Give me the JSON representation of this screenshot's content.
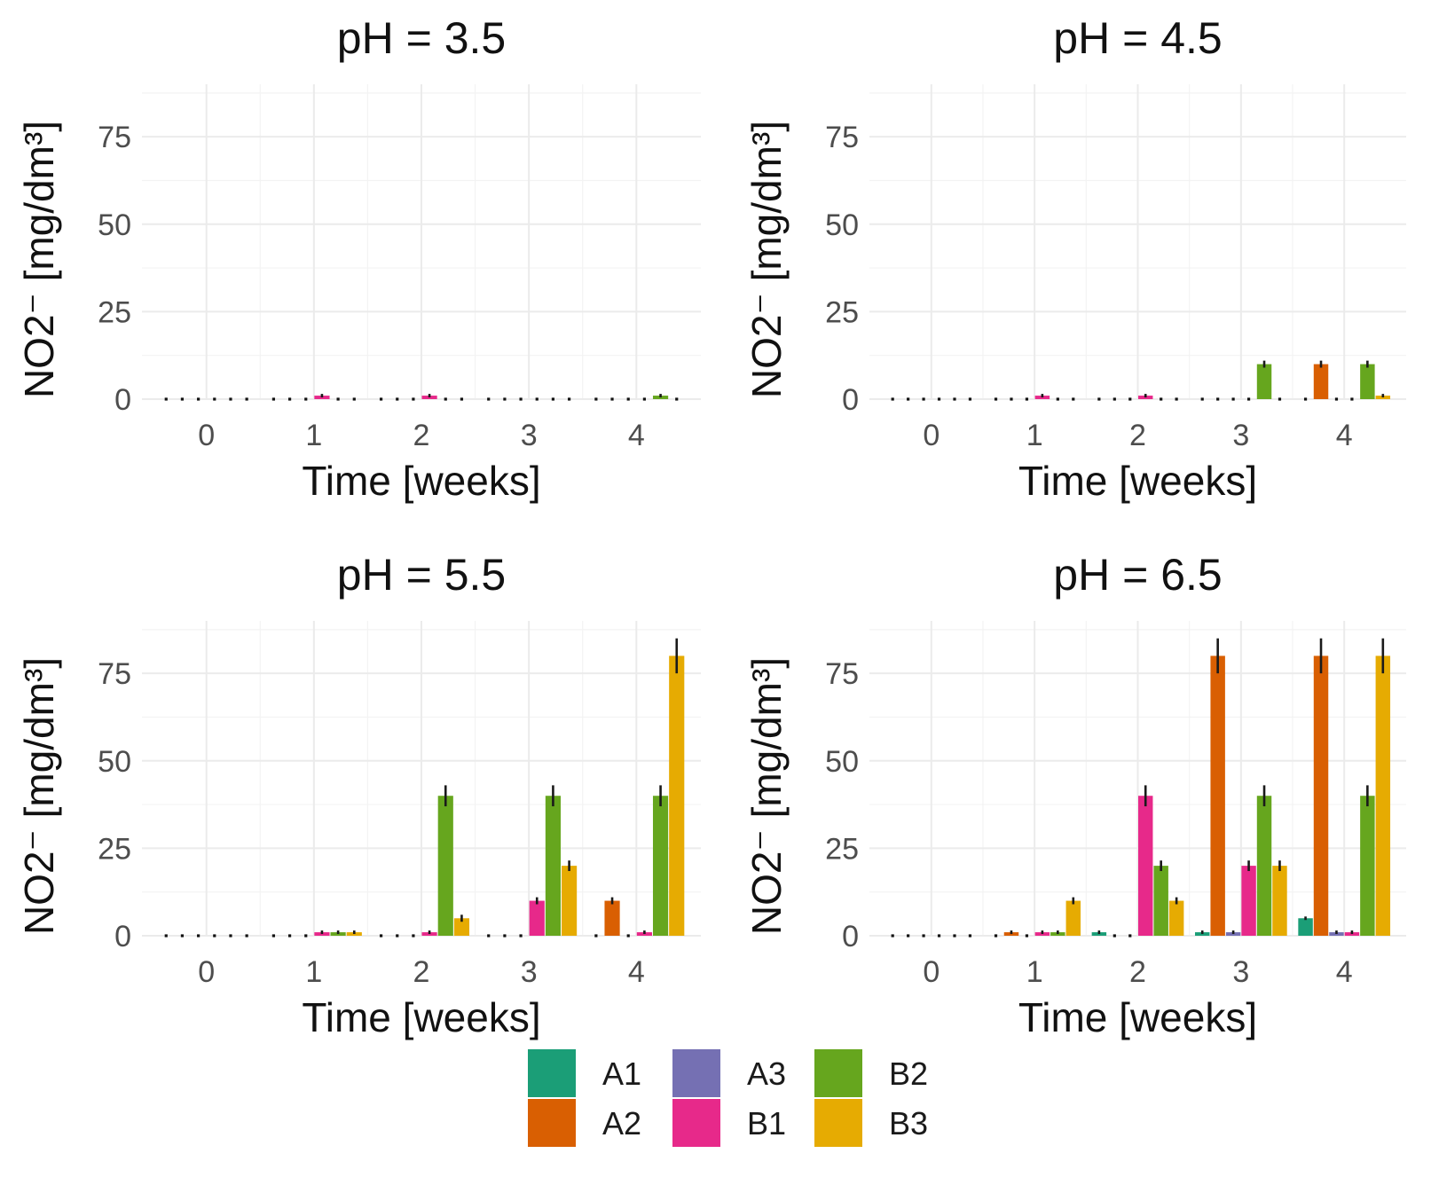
{
  "chart_data": [
    {
      "type": "bar",
      "title": "pH = 3.5",
      "xlabel": "Time [weeks]",
      "ylabel": "NO2⁻ [mg/dm³]",
      "categories": [
        "0",
        "1",
        "2",
        "3",
        "4"
      ],
      "yticks": [
        "0",
        "25",
        "50",
        "75"
      ],
      "ylim": [
        0,
        90
      ],
      "grid": true,
      "series": [
        {
          "name": "A1",
          "values": [
            0,
            0,
            0,
            0,
            0
          ],
          "errors": [
            0,
            0,
            0,
            0,
            0
          ]
        },
        {
          "name": "A2",
          "values": [
            0,
            0,
            0,
            0,
            0
          ],
          "errors": [
            0,
            0,
            0,
            0,
            0
          ]
        },
        {
          "name": "A3",
          "values": [
            0,
            0,
            0,
            0,
            0
          ],
          "errors": [
            0,
            0,
            0,
            0,
            0
          ]
        },
        {
          "name": "B1",
          "values": [
            0,
            1,
            1,
            0,
            0
          ],
          "errors": [
            0,
            0.5,
            0.5,
            0,
            0
          ]
        },
        {
          "name": "B2",
          "values": [
            0,
            0,
            0,
            0,
            1
          ],
          "errors": [
            0,
            0,
            0,
            0,
            0.5
          ]
        },
        {
          "name": "B3",
          "values": [
            0,
            0,
            0,
            0,
            0
          ],
          "errors": [
            0,
            0,
            0,
            0,
            0
          ]
        }
      ]
    },
    {
      "type": "bar",
      "title": "pH = 4.5",
      "xlabel": "Time [weeks]",
      "ylabel": "NO2⁻ [mg/dm³]",
      "categories": [
        "0",
        "1",
        "2",
        "3",
        "4"
      ],
      "yticks": [
        "0",
        "25",
        "50",
        "75"
      ],
      "ylim": [
        0,
        90
      ],
      "grid": true,
      "series": [
        {
          "name": "A1",
          "values": [
            0,
            0,
            0,
            0,
            0
          ],
          "errors": [
            0,
            0,
            0,
            0,
            0
          ]
        },
        {
          "name": "A2",
          "values": [
            0,
            0,
            0,
            0,
            10
          ],
          "errors": [
            0,
            0,
            0,
            0,
            1
          ]
        },
        {
          "name": "A3",
          "values": [
            0,
            0,
            0,
            0,
            0
          ],
          "errors": [
            0,
            0,
            0,
            0,
            0
          ]
        },
        {
          "name": "B1",
          "values": [
            0,
            1,
            1,
            0,
            0
          ],
          "errors": [
            0,
            0.5,
            0.5,
            0,
            0
          ]
        },
        {
          "name": "B2",
          "values": [
            0,
            0,
            0,
            10,
            10
          ],
          "errors": [
            0,
            0,
            0,
            1,
            1
          ]
        },
        {
          "name": "B3",
          "values": [
            0,
            0,
            0,
            0,
            1
          ],
          "errors": [
            0,
            0,
            0,
            0,
            0.5
          ]
        }
      ]
    },
    {
      "type": "bar",
      "title": "pH = 5.5",
      "xlabel": "Time [weeks]",
      "ylabel": "NO2⁻ [mg/dm³]",
      "categories": [
        "0",
        "1",
        "2",
        "3",
        "4"
      ],
      "yticks": [
        "0",
        "25",
        "50",
        "75"
      ],
      "ylim": [
        0,
        90
      ],
      "grid": true,
      "series": [
        {
          "name": "A1",
          "values": [
            0,
            0,
            0,
            0,
            0
          ],
          "errors": [
            0,
            0,
            0,
            0,
            0
          ]
        },
        {
          "name": "A2",
          "values": [
            0,
            0,
            0,
            0,
            10
          ],
          "errors": [
            0,
            0,
            0,
            0,
            1
          ]
        },
        {
          "name": "A3",
          "values": [
            0,
            0,
            0,
            0,
            0
          ],
          "errors": [
            0,
            0,
            0,
            0,
            0
          ]
        },
        {
          "name": "B1",
          "values": [
            0,
            1,
            1,
            10,
            1
          ],
          "errors": [
            0,
            0.5,
            0.5,
            1,
            0.5
          ]
        },
        {
          "name": "B2",
          "values": [
            0,
            1,
            40,
            40,
            40
          ],
          "errors": [
            0,
            0.5,
            3,
            3,
            3
          ]
        },
        {
          "name": "B3",
          "values": [
            0,
            1,
            5,
            20,
            80
          ],
          "errors": [
            0,
            0.5,
            1,
            1.5,
            5
          ]
        }
      ]
    },
    {
      "type": "bar",
      "title": "pH = 6.5",
      "xlabel": "Time [weeks]",
      "ylabel": "NO2⁻ [mg/dm³]",
      "categories": [
        "0",
        "1",
        "2",
        "3",
        "4"
      ],
      "yticks": [
        "0",
        "25",
        "50",
        "75"
      ],
      "ylim": [
        0,
        90
      ],
      "grid": true,
      "series": [
        {
          "name": "A1",
          "values": [
            0,
            0,
            1,
            1,
            5
          ],
          "errors": [
            0,
            0,
            0.5,
            0.5,
            0.5
          ]
        },
        {
          "name": "A2",
          "values": [
            0,
            1,
            0,
            80,
            80
          ],
          "errors": [
            0,
            0.5,
            0,
            5,
            5
          ]
        },
        {
          "name": "A3",
          "values": [
            0,
            0,
            0,
            1,
            1
          ],
          "errors": [
            0,
            0,
            0,
            0.5,
            0.5
          ]
        },
        {
          "name": "B1",
          "values": [
            0,
            1,
            40,
            20,
            1
          ],
          "errors": [
            0,
            0.5,
            3,
            1.5,
            0.5
          ]
        },
        {
          "name": "B2",
          "values": [
            0,
            1,
            20,
            40,
            40
          ],
          "errors": [
            0,
            0.5,
            1.5,
            3,
            3
          ]
        },
        {
          "name": "B3",
          "values": [
            0,
            10,
            10,
            20,
            80
          ],
          "errors": [
            0,
            1,
            1,
            1.5,
            5
          ]
        }
      ]
    }
  ],
  "legend": {
    "placement": "bottom",
    "items": [
      {
        "name": "A1",
        "color": "#1b9e77"
      },
      {
        "name": "A2",
        "color": "#d95f02"
      },
      {
        "name": "A3",
        "color": "#7570b3"
      },
      {
        "name": "B1",
        "color": "#e7298a"
      },
      {
        "name": "B2",
        "color": "#66a61e"
      },
      {
        "name": "B3",
        "color": "#e6ab02"
      }
    ]
  }
}
